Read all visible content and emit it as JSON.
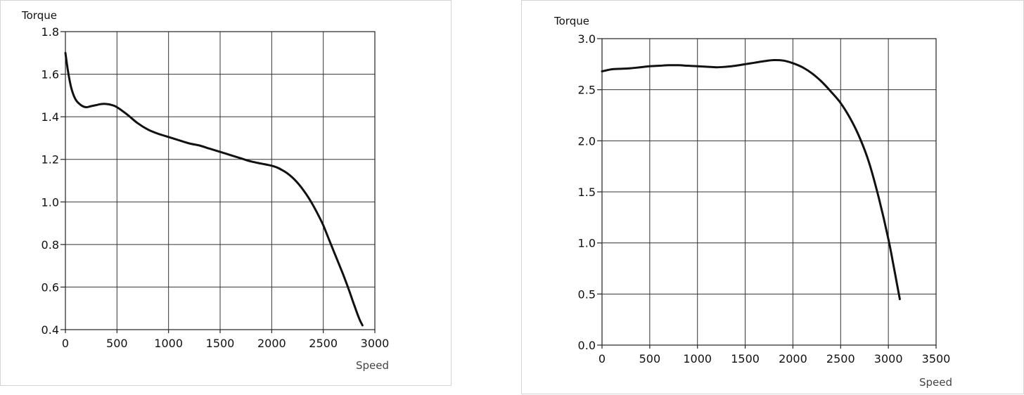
{
  "chart_data": [
    {
      "type": "line",
      "ylabel": "Torque",
      "xlabel": "Speed",
      "xlim": [
        0,
        3000
      ],
      "ylim": [
        0.4,
        1.8
      ],
      "xticks": [
        0,
        500,
        1000,
        1500,
        2000,
        2500,
        3000
      ],
      "yticks": [
        "0.4",
        "0.6",
        "0.8",
        "1.0",
        "1.2",
        "1.4",
        "1.6",
        "1.8"
      ],
      "grid": true,
      "line_color": "#111111",
      "series": [
        {
          "x": [
            0,
            30,
            60,
            100,
            150,
            200,
            250,
            300,
            350,
            400,
            450,
            500,
            600,
            700,
            800,
            900,
            1000,
            1100,
            1200,
            1300,
            1400,
            1500,
            1600,
            1700,
            1800,
            1900,
            2000,
            2050,
            2100,
            2150,
            2200,
            2250,
            2300,
            2350,
            2400,
            2450,
            2500,
            2550,
            2600,
            2650,
            2700,
            2750,
            2800,
            2850,
            2880
          ],
          "y": [
            1.7,
            1.6,
            1.53,
            1.48,
            1.455,
            1.445,
            1.45,
            1.455,
            1.46,
            1.46,
            1.455,
            1.445,
            1.41,
            1.37,
            1.34,
            1.32,
            1.305,
            1.29,
            1.275,
            1.265,
            1.25,
            1.235,
            1.22,
            1.205,
            1.19,
            1.18,
            1.17,
            1.162,
            1.15,
            1.135,
            1.115,
            1.09,
            1.06,
            1.025,
            0.985,
            0.94,
            0.89,
            0.83,
            0.77,
            0.71,
            0.65,
            0.585,
            0.515,
            0.45,
            0.42
          ]
        }
      ]
    },
    {
      "type": "line",
      "ylabel": "Torque",
      "xlabel": "Speed",
      "xlim": [
        0,
        3500
      ],
      "ylim": [
        0,
        3.0
      ],
      "xticks": [
        0,
        500,
        1000,
        1500,
        2000,
        2500,
        3000,
        3500
      ],
      "yticks": [
        "0.0",
        "0.5",
        "1.0",
        "1.5",
        "2.0",
        "2.5",
        "3.0"
      ],
      "grid": true,
      "line_color": "#111111",
      "series": [
        {
          "x": [
            0,
            100,
            200,
            300,
            400,
            500,
            600,
            700,
            800,
            900,
            1000,
            1100,
            1200,
            1300,
            1400,
            1500,
            1600,
            1700,
            1800,
            1900,
            2000,
            2100,
            2200,
            2300,
            2400,
            2500,
            2600,
            2700,
            2800,
            2900,
            3000,
            3050,
            3100,
            3120
          ],
          "y": [
            2.68,
            2.7,
            2.705,
            2.71,
            2.72,
            2.73,
            2.735,
            2.74,
            2.74,
            2.735,
            2.73,
            2.725,
            2.72,
            2.725,
            2.735,
            2.75,
            2.765,
            2.78,
            2.79,
            2.785,
            2.76,
            2.72,
            2.66,
            2.58,
            2.48,
            2.37,
            2.22,
            2.03,
            1.78,
            1.44,
            1.04,
            0.8,
            0.55,
            0.45
          ]
        }
      ]
    }
  ]
}
